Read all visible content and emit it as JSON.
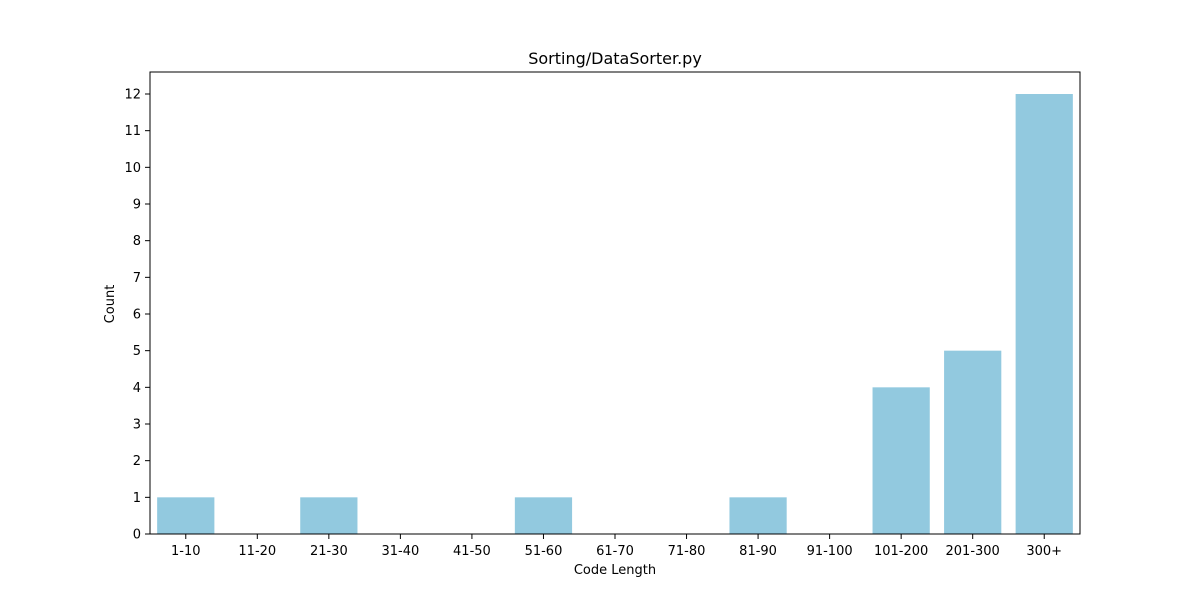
{
  "chart_data": {
    "type": "bar",
    "title": "Sorting/DataSorter.py",
    "xlabel": "Code Length",
    "ylabel": "Count",
    "categories": [
      "1-10",
      "11-20",
      "21-30",
      "31-40",
      "41-50",
      "51-60",
      "61-70",
      "71-80",
      "81-90",
      "91-100",
      "101-200",
      "201-300",
      "300+"
    ],
    "values": [
      1,
      0,
      1,
      0,
      0,
      1,
      0,
      0,
      1,
      0,
      4,
      5,
      12
    ],
    "ylim": [
      0,
      12.6
    ],
    "yticks": [
      0,
      1,
      2,
      3,
      4,
      5,
      6,
      7,
      8,
      9,
      10,
      11,
      12
    ],
    "grid": false,
    "legend": "none",
    "bar_color": "#92c9df",
    "axis_color": "#000000"
  }
}
